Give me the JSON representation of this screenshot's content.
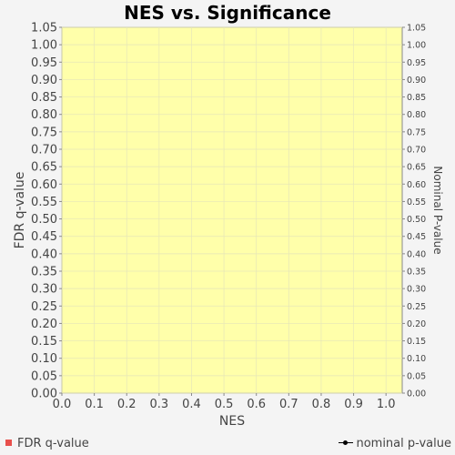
{
  "chart_data": {
    "type": "scatter",
    "title": "NES vs. Significance",
    "xlabel": "NES",
    "ylabel": "FDR q-value",
    "ylabel_right": "Nominal P-value",
    "xlim": [
      0.0,
      1.05
    ],
    "ylim": [
      0.0,
      1.05
    ],
    "x_ticks": [
      "0.0",
      "0.1",
      "0.2",
      "0.3",
      "0.4",
      "0.5",
      "0.6",
      "0.7",
      "0.8",
      "0.9",
      "1.0"
    ],
    "y_ticks": [
      "0.00",
      "0.05",
      "0.10",
      "0.15",
      "0.20",
      "0.25",
      "0.30",
      "0.35",
      "0.40",
      "0.45",
      "0.50",
      "0.55",
      "0.60",
      "0.65",
      "0.70",
      "0.75",
      "0.80",
      "0.85",
      "0.90",
      "0.95",
      "1.00",
      "1.05"
    ],
    "y_ticks_right": [
      "0.00",
      "0.05",
      "0.10",
      "0.15",
      "0.20",
      "0.25",
      "0.30",
      "0.35",
      "0.40",
      "0.45",
      "0.50",
      "0.55",
      "0.60",
      "0.65",
      "0.70",
      "0.75",
      "0.80",
      "0.85",
      "0.90",
      "0.95",
      "1.00",
      "1.05"
    ],
    "series": [
      {
        "name": "FDR q-value",
        "color": "#e8504c",
        "points": []
      },
      {
        "name": "nominal p-value",
        "color": "#000000",
        "points": []
      }
    ],
    "plot_background": "#ffffaa",
    "grid": true,
    "legend": "bottom"
  },
  "legend": {
    "left_label": "FDR q-value",
    "right_label": "nominal p-value"
  }
}
